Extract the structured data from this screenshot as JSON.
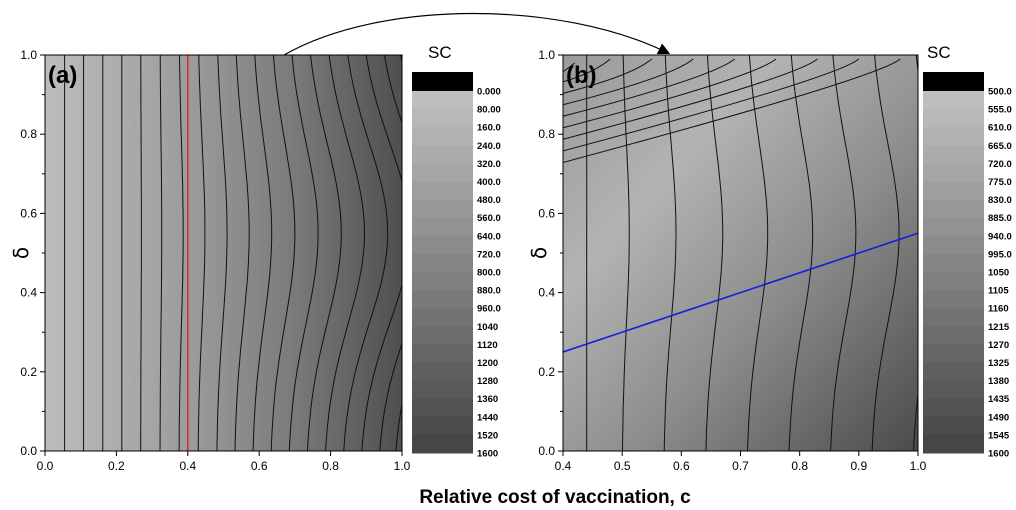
{
  "xlabel": "Relative cost of vaccination, c",
  "chart_data": [
    {
      "panel": "(a)",
      "type": "heatmap",
      "ylabel": "δ",
      "xlim": [
        0.0,
        1.0
      ],
      "ylim": [
        0.0,
        1.0
      ],
      "x_ticks": [
        "0.0",
        "0.2",
        "0.4",
        "0.6",
        "0.8",
        "1.0"
      ],
      "y_ticks": [
        "0.0",
        "0.2",
        "0.4",
        "0.6",
        "0.8",
        "1.0"
      ],
      "colorbar": {
        "title": "SC",
        "levels": [
          "0.000",
          "80.00",
          "160.0",
          "240.0",
          "320.0",
          "400.0",
          "480.0",
          "560.0",
          "640.0",
          "720.0",
          "800.0",
          "880.0",
          "960.0",
          "1040",
          "1120",
          "1200",
          "1280",
          "1360",
          "1440",
          "1520",
          "1600"
        ]
      },
      "reference_line": {
        "orientation": "vertical",
        "x": 0.4,
        "color": "#e02020"
      },
      "contour_lines": [
        {
          "c_bottom": 0.055,
          "bulge": 0.0
        },
        {
          "c_bottom": 0.108,
          "bulge": 0.0
        },
        {
          "c_bottom": 0.162,
          "bulge": 0.0
        },
        {
          "c_bottom": 0.215,
          "bulge": 0.0
        },
        {
          "c_bottom": 0.268,
          "bulge": 0.002
        },
        {
          "c_bottom": 0.322,
          "bulge": 0.005
        },
        {
          "c_bottom": 0.375,
          "bulge": 0.012
        },
        {
          "c_bottom": 0.428,
          "bulge": 0.02
        },
        {
          "c_bottom": 0.48,
          "bulge": 0.03
        },
        {
          "c_bottom": 0.53,
          "bulge": 0.042
        },
        {
          "c_bottom": 0.58,
          "bulge": 0.055
        },
        {
          "c_bottom": 0.63,
          "bulge": 0.07
        },
        {
          "c_bottom": 0.68,
          "bulge": 0.085
        },
        {
          "c_bottom": 0.73,
          "bulge": 0.1
        },
        {
          "c_bottom": 0.78,
          "bulge": 0.115
        },
        {
          "c_bottom": 0.83,
          "bulge": 0.13
        },
        {
          "c_bottom": 0.88,
          "bulge": 0.142
        },
        {
          "c_bottom": 0.93,
          "bulge": 0.15
        },
        {
          "c_bottom": 0.975,
          "bulge": 0.155
        }
      ]
    },
    {
      "panel": "(b)",
      "type": "heatmap",
      "ylabel": "δ",
      "xlim": [
        0.4,
        1.0
      ],
      "ylim": [
        0.0,
        1.0
      ],
      "x_ticks": [
        "0.4",
        "0.5",
        "0.6",
        "0.7",
        "0.8",
        "0.9",
        "1.0"
      ],
      "y_ticks": [
        "0.0",
        "0.2",
        "0.4",
        "0.6",
        "0.8",
        "1.0"
      ],
      "colorbar": {
        "title": "SC",
        "levels": [
          "500.0",
          "555.0",
          "610.0",
          "665.0",
          "720.0",
          "775.0",
          "830.0",
          "885.0",
          "940.0",
          "995.0",
          "1050",
          "1105",
          "1160",
          "1215",
          "1270",
          "1325",
          "1380",
          "1435",
          "1490",
          "1545",
          "1600"
        ]
      },
      "reference_line": {
        "orientation": "line",
        "x": [
          0.4,
          1.0
        ],
        "y": [
          0.25,
          0.55
        ],
        "color": "#1a1adc"
      },
      "contour_lines": [
        {
          "c_bottom": 0.44,
          "bulge": 0.0
        },
        {
          "c_bottom": 0.5,
          "bulge": 0.02
        },
        {
          "c_bottom": 0.57,
          "bulge": 0.035
        },
        {
          "c_bottom": 0.64,
          "bulge": 0.05
        },
        {
          "c_bottom": 0.71,
          "bulge": 0.06
        },
        {
          "c_bottom": 0.78,
          "bulge": 0.07
        },
        {
          "c_bottom": 0.85,
          "bulge": 0.075
        },
        {
          "c_bottom": 0.92,
          "bulge": 0.08
        },
        {
          "c_bottom": 0.99,
          "bulge": 0.085
        }
      ],
      "upper_contours": [
        {
          "x_top": 0.42,
          "y_top": 0.98
        },
        {
          "x_top": 0.48,
          "y_top": 0.99
        },
        {
          "x_top": 0.55,
          "y_top": 0.99
        },
        {
          "x_top": 0.62,
          "y_top": 0.99
        },
        {
          "x_top": 0.69,
          "y_top": 0.99
        },
        {
          "x_top": 0.76,
          "y_top": 0.99
        },
        {
          "x_top": 0.83,
          "y_top": 0.99
        },
        {
          "x_top": 0.9,
          "y_top": 0.99
        },
        {
          "x_top": 0.97,
          "y_top": 0.99
        }
      ]
    }
  ]
}
